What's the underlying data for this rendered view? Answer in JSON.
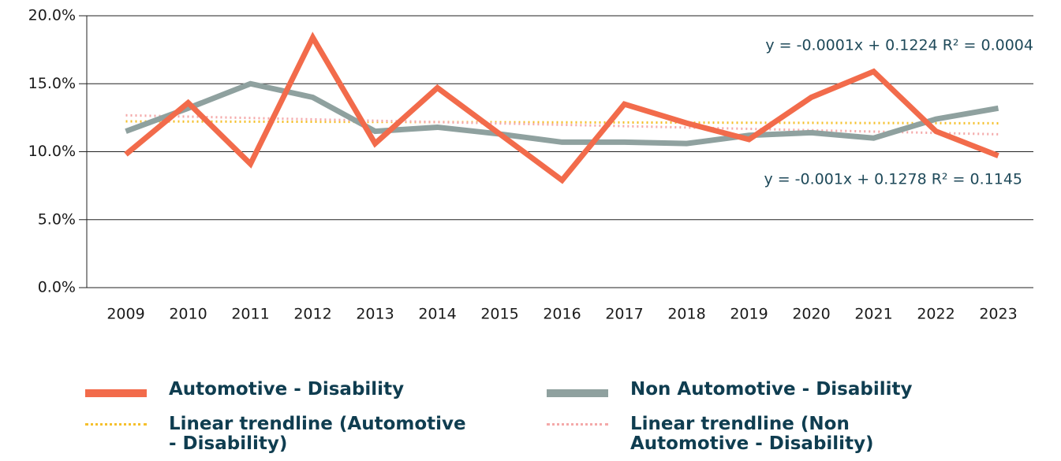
{
  "chart_data": {
    "type": "line",
    "categories": [
      "2009",
      "2010",
      "2011",
      "2012",
      "2013",
      "2014",
      "2015",
      "2016",
      "2017",
      "2018",
      "2019",
      "2020",
      "2021",
      "2022",
      "2023"
    ],
    "series": [
      {
        "name": "Automotive - Disability",
        "color": "#f26b4b",
        "style": "solid",
        "values": [
          9.8,
          13.6,
          9.1,
          18.4,
          10.6,
          14.7,
          11.3,
          7.9,
          13.5,
          12.1,
          10.9,
          14.0,
          15.9,
          11.5,
          9.7
        ]
      },
      {
        "name": "Non Automotive - Disability",
        "color": "#8fa19f",
        "style": "solid",
        "values": [
          11.5,
          13.2,
          15.0,
          14.0,
          11.5,
          11.8,
          11.3,
          10.7,
          10.7,
          10.6,
          11.2,
          11.4,
          11.0,
          12.4,
          13.2
        ]
      },
      {
        "name": "Linear trendline (Automotive - Disability)",
        "color": "#f5c02c",
        "style": "dotted",
        "values": [
          12.23,
          12.22,
          12.21,
          12.2,
          12.19,
          12.18,
          12.17,
          12.16,
          12.15,
          12.14,
          12.13,
          12.12,
          12.11,
          12.1,
          12.09
        ]
      },
      {
        "name": "Linear trendline (Non Automotive - Disability)",
        "color": "#f4a9a9",
        "style": "dotted",
        "values": [
          12.68,
          12.58,
          12.48,
          12.38,
          12.28,
          12.18,
          12.08,
          11.98,
          11.88,
          11.78,
          11.68,
          11.58,
          11.48,
          11.38,
          11.28
        ]
      }
    ],
    "annotations": [
      "y = -0.0001x + 0.1224 R² = 0.0004",
      "y = -0.001x + 0.1278 R² = 0.1145"
    ],
    "ylim": [
      0,
      20
    ],
    "yticks": [
      {
        "value": 0,
        "label": "0.0%"
      },
      {
        "value": 5,
        "label": "5.0%"
      },
      {
        "value": 10,
        "label": "10.0%"
      },
      {
        "value": 15,
        "label": "15.0%"
      },
      {
        "value": 20,
        "label": "20.0%"
      }
    ],
    "grid": true
  }
}
